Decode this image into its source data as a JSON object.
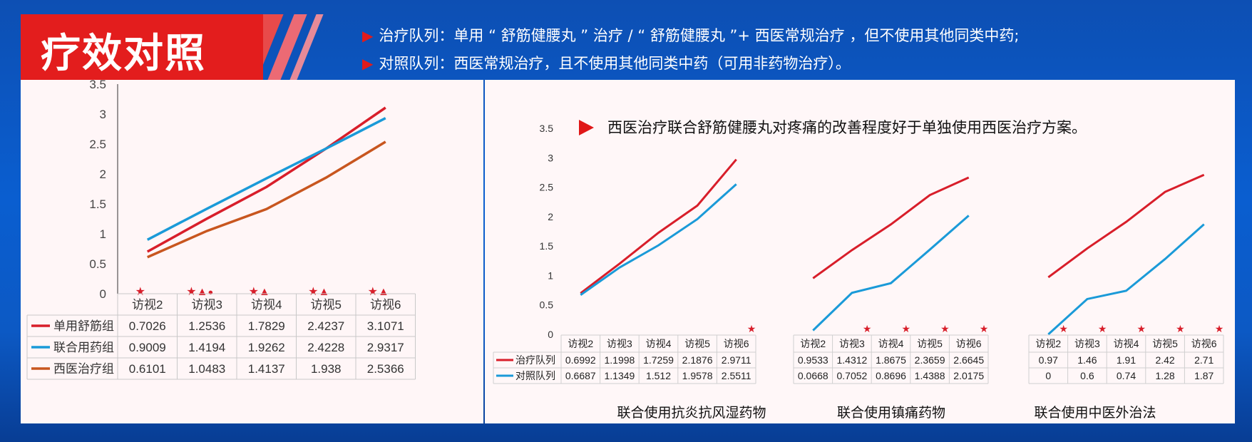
{
  "header": {
    "title": "疗效对照",
    "notes": [
      "治疗队列：单用 “ 舒筋健腰丸 ” 治疗  /  “ 舒筋健腰丸 ”+ 西医常规治疗 ，但不使用其他同类中药;",
      "对照队列：西医常规治疗，且不使用其他同类中药（可用非药物治疗）。"
    ],
    "arrow_glyph": "▶"
  },
  "chart_data": [
    {
      "type": "line",
      "categories": [
        "访视2",
        "访视3",
        "访视4",
        "访视5",
        "访视6"
      ],
      "ylim": [
        0,
        3.5
      ],
      "yticks": [
        "0",
        "0.5",
        "1",
        "1.5",
        "2",
        "2.5",
        "3",
        "3.5"
      ],
      "series": [
        {
          "name": "单用舒筋组",
          "color": "#d81e2a",
          "values": [
            0.7026,
            1.2536,
            1.7829,
            2.4237,
            3.1071
          ],
          "labels": [
            "0.7026",
            "1.2536",
            "1.7829",
            "2.4237",
            "3.1071"
          ]
        },
        {
          "name": "联合用药组",
          "color": "#1a9ad8",
          "values": [
            0.9009,
            1.4194,
            1.9262,
            2.4228,
            2.9317
          ],
          "labels": [
            "0.9009",
            "1.4194",
            "1.9262",
            "2.4228",
            "2.9317"
          ]
        },
        {
          "name": "西医治疗组",
          "color": "#c8561f",
          "values": [
            0.6101,
            1.0483,
            1.4137,
            1.938,
            2.5366
          ],
          "labels": [
            "0.6101",
            "1.0483",
            "1.4137",
            "1.938",
            "2.5366"
          ]
        }
      ],
      "markers": [
        "★",
        "★▲●",
        "★▲",
        "★▲",
        "★▲"
      ]
    },
    {
      "type": "line",
      "title": "西医治疗联合舒筋健腰丸对疼痛的改善程度好于单独使用西医治疗方案。",
      "ylim": [
        0,
        3.5
      ],
      "yticks": [
        "0",
        "0.5",
        "1",
        "1.5",
        "2",
        "2.5",
        "3",
        "3.5"
      ],
      "legend": [
        {
          "name": "治疗队列",
          "color": "#d81e2a"
        },
        {
          "name": "对照队列",
          "color": "#1a9ad8"
        }
      ],
      "groups": [
        {
          "label": "联合使用抗炎抗风湿药物",
          "categories": [
            "访视2",
            "访视3",
            "访视4",
            "访视5",
            "访视6"
          ],
          "series": [
            {
              "name": "治疗队列",
              "values": [
                0.6992,
                1.1998,
                1.7259,
                2.1876,
                2.9711
              ],
              "labels": [
                "0.6992",
                "1.1998",
                "1.7259",
                "2.1876",
                "2.9711"
              ]
            },
            {
              "name": "对照队列",
              "values": [
                0.6687,
                1.1349,
                1.512,
                1.9578,
                2.5511
              ],
              "labels": [
                "0.6687",
                "1.1349",
                "1.512",
                "1.9578",
                "2.5511"
              ]
            }
          ],
          "markers": [
            "",
            "",
            "",
            "",
            "★"
          ]
        },
        {
          "label": "联合使用镇痛药物",
          "categories": [
            "访视2",
            "访视3",
            "访视4",
            "访视5",
            "访视6"
          ],
          "series": [
            {
              "name": "治疗队列",
              "values": [
                0.9533,
                1.4312,
                1.8675,
                2.3659,
                2.6645
              ],
              "labels": [
                "0.9533",
                "1.4312",
                "1.8675",
                "2.3659",
                "2.6645"
              ]
            },
            {
              "name": "对照队列",
              "values": [
                0.0668,
                0.7052,
                0.8696,
                1.4388,
                2.0175
              ],
              "labels": [
                "0.0668",
                "0.7052",
                "0.8696",
                "1.4388",
                "2.0175"
              ]
            }
          ],
          "markers": [
            "",
            "★",
            "★",
            "★",
            "★"
          ]
        },
        {
          "label": "联合使用中医外治法",
          "categories": [
            "访视2",
            "访视3",
            "访视4",
            "访视5",
            "访视6"
          ],
          "series": [
            {
              "name": "治疗队列",
              "values": [
                0.97,
                1.46,
                1.91,
                2.42,
                2.71
              ],
              "labels": [
                "0.97",
                "1.46",
                "1.91",
                "2.42",
                "2.71"
              ]
            },
            {
              "name": "对照队列",
              "values": [
                0,
                0.6,
                0.74,
                1.28,
                1.87
              ],
              "labels": [
                "0",
                "0.6",
                "0.74",
                "1.28",
                "1.87"
              ]
            }
          ],
          "markers": [
            "★",
            "★",
            "★",
            "★",
            "★"
          ]
        }
      ]
    }
  ]
}
